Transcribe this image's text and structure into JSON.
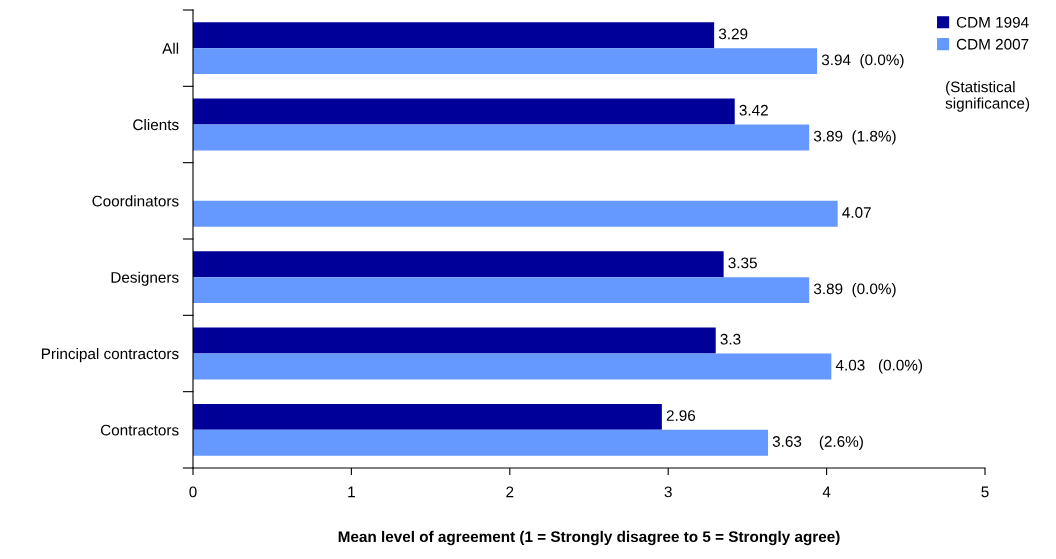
{
  "chart_data": {
    "type": "bar",
    "orientation": "horizontal",
    "xlabel": "Mean level of agreement (1 = Strongly disagree to 5 = Strongly agree)",
    "categories": [
      "All",
      "Clients",
      "Coordinators",
      "Designers",
      "Principal contractors",
      "Contractors"
    ],
    "series": [
      {
        "name": "CDM 1994",
        "color": "#000099",
        "values": [
          3.29,
          3.42,
          null,
          3.35,
          3.3,
          2.96
        ],
        "value_labels": [
          "3.29",
          "3.42",
          null,
          "3.35",
          "3.3",
          "2.96"
        ]
      },
      {
        "name": "CDM 2007",
        "color": "#6699ff",
        "values": [
          3.94,
          3.89,
          4.07,
          3.89,
          4.03,
          3.63
        ],
        "value_labels": [
          "3.94  (0.0%)",
          "3.89  (1.8%)",
          "4.07",
          "3.89  (0.0%)",
          "4.03   (0.0%)",
          "3.63    (2.6%)"
        ]
      }
    ],
    "xlim": [
      0,
      5
    ],
    "xticks": [
      0,
      1,
      2,
      3,
      4,
      5
    ],
    "legend": "top right",
    "grid": false,
    "annotations": [
      "(Statistical significance)"
    ]
  }
}
